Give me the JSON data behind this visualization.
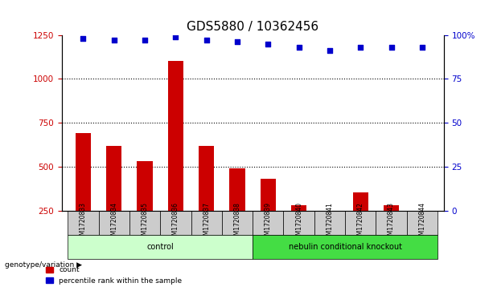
{
  "title": "GDS5880 / 10362456",
  "samples": [
    "GSM1720833",
    "GSM1720834",
    "GSM1720835",
    "GSM1720836",
    "GSM1720837",
    "GSM1720838",
    "GSM1720839",
    "GSM1720840",
    "GSM1720841",
    "GSM1720842",
    "GSM1720843",
    "GSM1720844"
  ],
  "counts": [
    690,
    620,
    530,
    1100,
    620,
    490,
    430,
    280,
    250,
    355,
    280,
    250
  ],
  "percentile_ranks": [
    98,
    97,
    97,
    99,
    97,
    96,
    95,
    93,
    91,
    93,
    93,
    93
  ],
  "bar_color": "#cc0000",
  "dot_color": "#0000cc",
  "ylim_left": [
    250,
    1250
  ],
  "ylim_right": [
    0,
    100
  ],
  "yticks_left": [
    250,
    500,
    750,
    1000,
    1250
  ],
  "yticks_right": [
    0,
    25,
    50,
    75,
    100
  ],
  "grid_lines": [
    500,
    750,
    1000
  ],
  "control_samples": 6,
  "knockout_samples": 6,
  "control_label": "control",
  "knockout_label": "nebulin conditional knockout",
  "genotype_label": "genotype/variation",
  "legend_count_label": "count",
  "legend_percentile_label": "percentile rank within the sample",
  "control_bg_color": "#ccffcc",
  "knockout_bg_color": "#44dd44",
  "sample_bg_color": "#cccccc",
  "bar_width": 0.5,
  "title_fontsize": 11,
  "tick_fontsize": 7.5,
  "label_fontsize": 8
}
